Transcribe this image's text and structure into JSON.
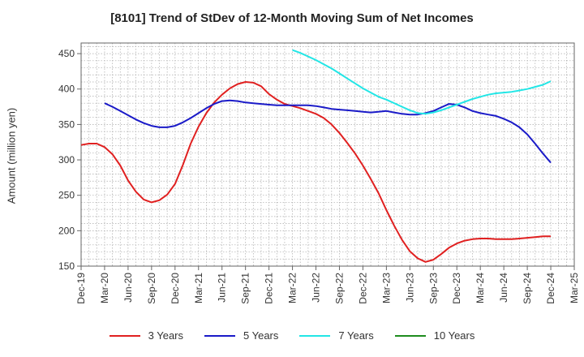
{
  "chart_data": {
    "type": "line",
    "title": "[8101]  Trend of StDev of 12-Month Moving Sum of Net Incomes",
    "xlabel": "",
    "ylabel": "Amount (million yen)",
    "ylim": [
      150,
      465
    ],
    "yticks": [
      150,
      200,
      250,
      300,
      350,
      400,
      450
    ],
    "x_start": "2019-12",
    "x_tick_labels": [
      "Dec-19",
      "Mar-20",
      "Jun-20",
      "Sep-20",
      "Dec-20",
      "Mar-21",
      "Jun-21",
      "Sep-21",
      "Dec-21",
      "Mar-22",
      "Jun-22",
      "Sep-22",
      "Dec-22",
      "Mar-23",
      "Jun-23",
      "Sep-23",
      "Dec-23",
      "Mar-24",
      "Jun-24",
      "Sep-24",
      "Dec-24",
      "Mar-25"
    ],
    "grid": true,
    "legend_position": "bottom",
    "series": [
      {
        "name": "3 Years",
        "color": "#e02020",
        "x": [
          "Dec-19",
          "Jan-20",
          "Feb-20",
          "Mar-20",
          "Apr-20",
          "May-20",
          "Jun-20",
          "Jul-20",
          "Aug-20",
          "Sep-20",
          "Oct-20",
          "Nov-20",
          "Dec-20",
          "Jan-21",
          "Feb-21",
          "Mar-21",
          "Apr-21",
          "May-21",
          "Jun-21",
          "Jul-21",
          "Aug-21",
          "Sep-21",
          "Oct-21",
          "Nov-21",
          "Dec-21",
          "Jan-22",
          "Feb-22",
          "Mar-22",
          "Apr-22",
          "May-22",
          "Jun-22",
          "Jul-22",
          "Aug-22",
          "Sep-22",
          "Oct-22",
          "Nov-22",
          "Dec-22",
          "Jan-23",
          "Feb-23",
          "Mar-23",
          "Apr-23",
          "May-23",
          "Jun-23",
          "Jul-23",
          "Aug-23",
          "Sep-23",
          "Oct-23",
          "Nov-23",
          "Dec-23",
          "Jan-24",
          "Feb-24",
          "Mar-24",
          "Apr-24",
          "May-24",
          "Jun-24",
          "Jul-24",
          "Aug-24",
          "Sep-24",
          "Oct-24",
          "Nov-24",
          "Dec-24"
        ],
        "values": [
          321,
          323,
          323,
          318,
          308,
          292,
          271,
          255,
          244,
          240,
          243,
          251,
          266,
          293,
          323,
          347,
          366,
          381,
          392,
          401,
          407,
          410,
          409,
          404,
          393,
          385,
          379,
          376,
          373,
          369,
          365,
          359,
          350,
          338,
          324,
          309,
          292,
          273,
          253,
          229,
          207,
          187,
          171,
          161,
          156,
          159,
          167,
          176,
          182,
          186,
          188,
          189,
          189,
          188,
          188,
          188,
          189,
          190,
          191,
          192,
          192
        ]
      },
      {
        "name": "5 Years",
        "color": "#1a1ac8",
        "x": [
          "Mar-20",
          "Apr-20",
          "May-20",
          "Jun-20",
          "Jul-20",
          "Aug-20",
          "Sep-20",
          "Oct-20",
          "Nov-20",
          "Dec-20",
          "Jan-21",
          "Feb-21",
          "Mar-21",
          "Apr-21",
          "May-21",
          "Jun-21",
          "Jul-21",
          "Aug-21",
          "Sep-21",
          "Oct-21",
          "Nov-21",
          "Dec-21",
          "Jan-22",
          "Feb-22",
          "Mar-22",
          "Apr-22",
          "May-22",
          "Jun-22",
          "Jul-22",
          "Aug-22",
          "Sep-22",
          "Oct-22",
          "Nov-22",
          "Dec-22",
          "Jan-23",
          "Feb-23",
          "Mar-23",
          "Apr-23",
          "May-23",
          "Jun-23",
          "Jul-23",
          "Aug-23",
          "Sep-23",
          "Oct-23",
          "Nov-23",
          "Dec-23",
          "Jan-24",
          "Feb-24",
          "Mar-24",
          "Apr-24",
          "May-24",
          "Jun-24",
          "Jul-24",
          "Aug-24",
          "Sep-24",
          "Oct-24",
          "Nov-24",
          "Dec-24"
        ],
        "values": [
          380,
          375,
          369,
          363,
          357,
          352,
          348,
          346,
          346,
          348,
          353,
          359,
          366,
          373,
          379,
          383,
          384,
          383,
          381,
          380,
          379,
          378,
          377,
          377,
          377,
          377,
          377,
          376,
          374,
          372,
          371,
          370,
          369,
          368,
          367,
          368,
          369,
          367,
          365,
          364,
          364,
          366,
          369,
          374,
          379,
          378,
          374,
          369,
          366,
          364,
          362,
          358,
          353,
          346,
          336,
          323,
          309,
          296
        ]
      },
      {
        "name": "7 Years",
        "color": "#22e6e6",
        "x": [
          "Mar-22",
          "Apr-22",
          "May-22",
          "Jun-22",
          "Jul-22",
          "Aug-22",
          "Sep-22",
          "Oct-22",
          "Nov-22",
          "Dec-22",
          "Jan-23",
          "Feb-23",
          "Mar-23",
          "Apr-23",
          "May-23",
          "Jun-23",
          "Jul-23",
          "Aug-23",
          "Sep-23",
          "Oct-23",
          "Nov-23",
          "Dec-23",
          "Jan-24",
          "Feb-24",
          "Mar-24",
          "Apr-24",
          "May-24",
          "Jun-24",
          "Jul-24",
          "Aug-24",
          "Sep-24",
          "Oct-24",
          "Nov-24",
          "Dec-24"
        ],
        "values": [
          455,
          451,
          446,
          441,
          435,
          429,
          422,
          415,
          408,
          401,
          395,
          389,
          385,
          380,
          375,
          370,
          366,
          365,
          367,
          370,
          374,
          378,
          382,
          386,
          389,
          392,
          394,
          395,
          396,
          398,
          400,
          403,
          406,
          411
        ]
      },
      {
        "name": "10 Years",
        "color": "#1e8c1e",
        "x": [],
        "values": []
      }
    ]
  }
}
